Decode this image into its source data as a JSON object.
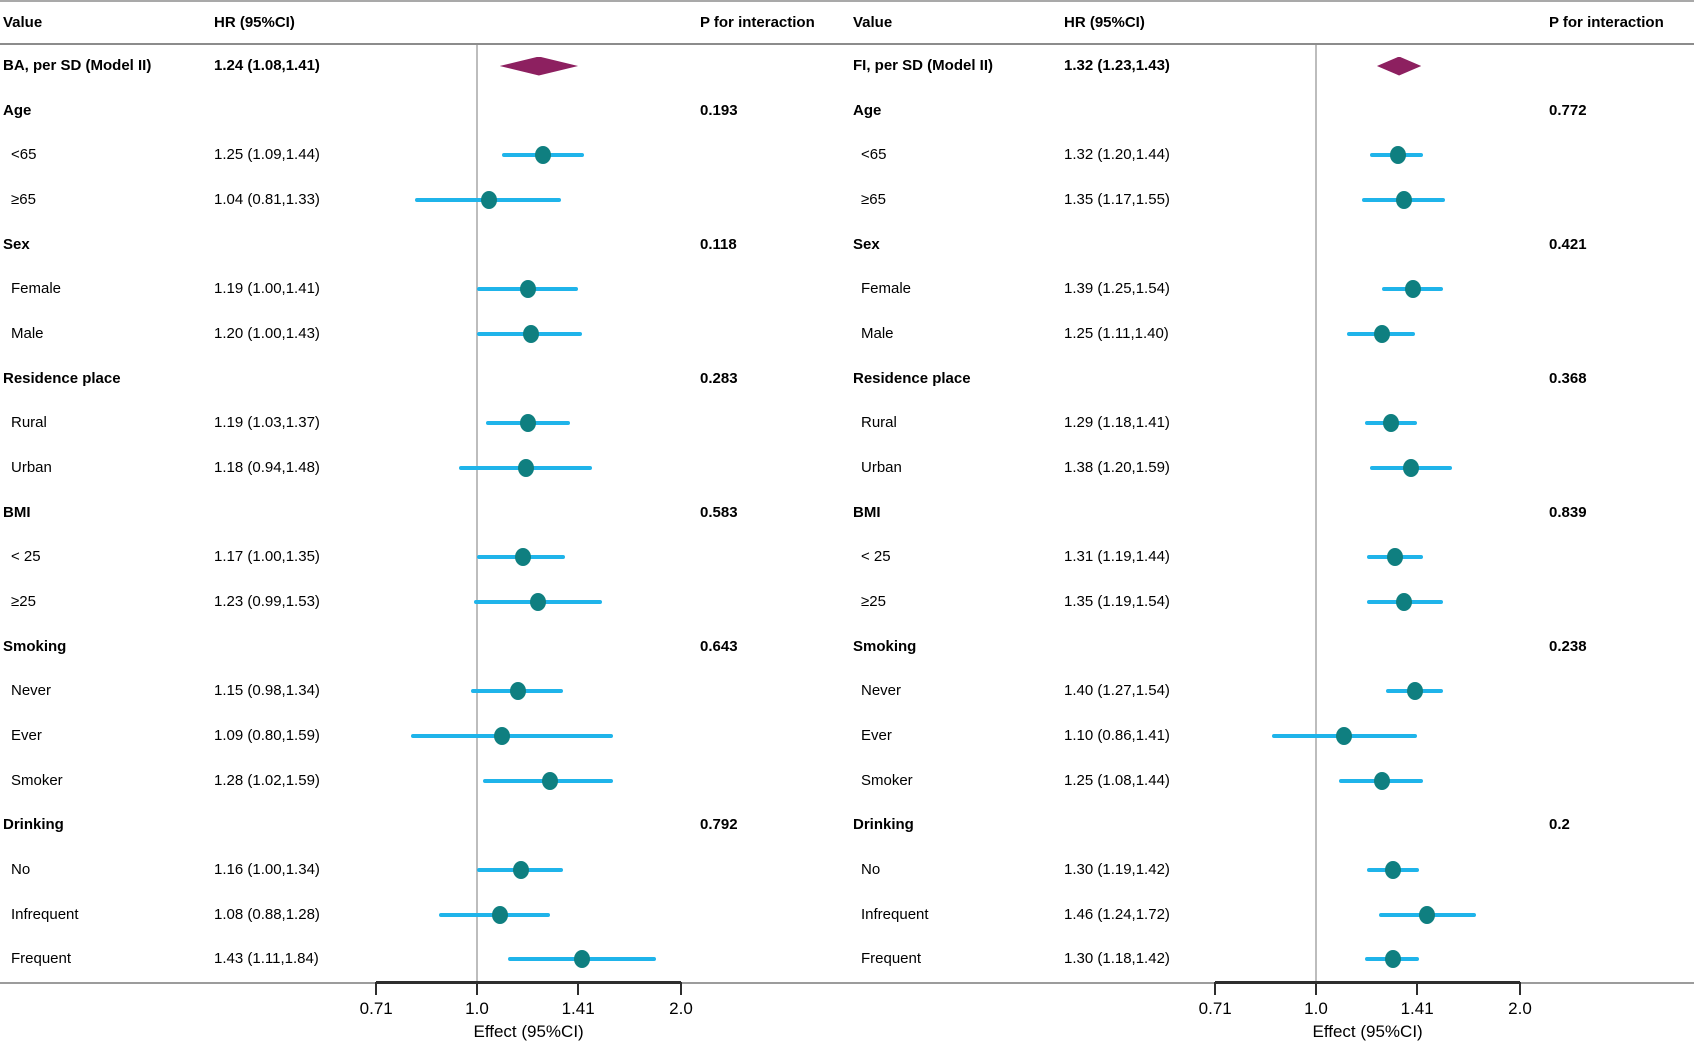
{
  "figure": {
    "axis_label": "Effect (95%CI)",
    "colors": {
      "ci_line": "#1fb4ea",
      "point": "#0f7f80",
      "diamond": "#8d2060",
      "ref_line": "#bdbdbd",
      "axis": "#2e2e2e"
    }
  },
  "chart_data": [
    {
      "type": "scatter",
      "subtype": "forest-plot",
      "xlabel": "Effect (95%CI)",
      "x_scale": "log2",
      "x_ticks": [
        0.71,
        1.0,
        1.41,
        2.0
      ],
      "x_tick_labels": [
        "0.71",
        "1.0",
        "1.41",
        "2.0"
      ],
      "ref_line": 1.0,
      "grid": false,
      "headers": {
        "value": "Value",
        "hr": "HR (95%CI)",
        "p": "P for interaction"
      },
      "summary": {
        "label": "BA, per SD (Model II)",
        "hr_text": "1.24 (1.08,1.41)",
        "hr": 1.24,
        "lo": 1.08,
        "hi": 1.41
      },
      "groups": [
        {
          "label": "Age",
          "p": "0.193",
          "items": [
            {
              "label": "<65",
              "hr_text": "1.25 (1.09,1.44)",
              "hr": 1.25,
              "lo": 1.09,
              "hi": 1.44
            },
            {
              "label": "≥65",
              "hr_text": "1.04 (0.81,1.33)",
              "hr": 1.04,
              "lo": 0.81,
              "hi": 1.33
            }
          ]
        },
        {
          "label": "Sex",
          "p": "0.118",
          "items": [
            {
              "label": "Female",
              "hr_text": "1.19 (1.00,1.41)",
              "hr": 1.19,
              "lo": 1.0,
              "hi": 1.41
            },
            {
              "label": "Male",
              "hr_text": "1.20 (1.00,1.43)",
              "hr": 1.2,
              "lo": 1.0,
              "hi": 1.43
            }
          ]
        },
        {
          "label": "Residence place",
          "p": "0.283",
          "items": [
            {
              "label": "Rural",
              "hr_text": "1.19 (1.03,1.37)",
              "hr": 1.19,
              "lo": 1.03,
              "hi": 1.37
            },
            {
              "label": "Urban",
              "hr_text": "1.18 (0.94,1.48)",
              "hr": 1.18,
              "lo": 0.94,
              "hi": 1.48
            }
          ]
        },
        {
          "label": "BMI",
          "p": "0.583",
          "items": [
            {
              "label": "< 25",
              "hr_text": "1.17 (1.00,1.35)",
              "hr": 1.17,
              "lo": 1.0,
              "hi": 1.35
            },
            {
              "label": "≥25",
              "hr_text": "1.23 (0.99,1.53)",
              "hr": 1.23,
              "lo": 0.99,
              "hi": 1.53
            }
          ]
        },
        {
          "label": "Smoking",
          "p": "0.643",
          "items": [
            {
              "label": "Never",
              "hr_text": "1.15 (0.98,1.34)",
              "hr": 1.15,
              "lo": 0.98,
              "hi": 1.34
            },
            {
              "label": "Ever",
              "hr_text": "1.09 (0.80,1.59)",
              "hr": 1.09,
              "lo": 0.8,
              "hi": 1.59
            },
            {
              "label": "Smoker",
              "hr_text": "1.28 (1.02,1.59)",
              "hr": 1.28,
              "lo": 1.02,
              "hi": 1.59
            }
          ]
        },
        {
          "label": "Drinking",
          "p": "0.792",
          "items": [
            {
              "label": "No",
              "hr_text": "1.16 (1.00,1.34)",
              "hr": 1.16,
              "lo": 1.0,
              "hi": 1.34
            },
            {
              "label": "Infrequent",
              "hr_text": "1.08 (0.88,1.28)",
              "hr": 1.08,
              "lo": 0.88,
              "hi": 1.28
            },
            {
              "label": "Frequent",
              "hr_text": "1.43 (1.11,1.84)",
              "hr": 1.43,
              "lo": 1.11,
              "hi": 1.84
            }
          ]
        }
      ]
    },
    {
      "type": "scatter",
      "subtype": "forest-plot",
      "xlabel": "Effect (95%CI)",
      "x_scale": "log2",
      "x_ticks": [
        0.71,
        1.0,
        1.41,
        2.0
      ],
      "x_tick_labels": [
        "0.71",
        "1.0",
        "1.41",
        "2.0"
      ],
      "ref_line": 1.0,
      "grid": false,
      "headers": {
        "value": "Value",
        "hr": "HR (95%CI)",
        "p": "P for interaction"
      },
      "summary": {
        "label": "FI, per SD (Model II)",
        "hr_text": "1.32 (1.23,1.43)",
        "hr": 1.32,
        "lo": 1.23,
        "hi": 1.43
      },
      "groups": [
        {
          "label": "Age",
          "p": "0.772",
          "items": [
            {
              "label": "<65",
              "hr_text": "1.32 (1.20,1.44)",
              "hr": 1.32,
              "lo": 1.2,
              "hi": 1.44
            },
            {
              "label": "≥65",
              "hr_text": "1.35 (1.17,1.55)",
              "hr": 1.35,
              "lo": 1.17,
              "hi": 1.55
            }
          ]
        },
        {
          "label": "Sex",
          "p": "0.421",
          "items": [
            {
              "label": "Female",
              "hr_text": "1.39 (1.25,1.54)",
              "hr": 1.39,
              "lo": 1.25,
              "hi": 1.54
            },
            {
              "label": "Male",
              "hr_text": "1.25 (1.11,1.40)",
              "hr": 1.25,
              "lo": 1.11,
              "hi": 1.4
            }
          ]
        },
        {
          "label": "Residence place",
          "p": "0.368",
          "items": [
            {
              "label": "Rural",
              "hr_text": "1.29 (1.18,1.41)",
              "hr": 1.29,
              "lo": 1.18,
              "hi": 1.41
            },
            {
              "label": "Urban",
              "hr_text": "1.38 (1.20,1.59)",
              "hr": 1.38,
              "lo": 1.2,
              "hi": 1.59
            }
          ]
        },
        {
          "label": "BMI",
          "p": "0.839",
          "items": [
            {
              "label": "< 25",
              "hr_text": "1.31 (1.19,1.44)",
              "hr": 1.31,
              "lo": 1.19,
              "hi": 1.44
            },
            {
              "label": "≥25",
              "hr_text": "1.35 (1.19,1.54)",
              "hr": 1.35,
              "lo": 1.19,
              "hi": 1.54
            }
          ]
        },
        {
          "label": "Smoking",
          "p": "0.238",
          "items": [
            {
              "label": "Never",
              "hr_text": "1.40 (1.27,1.54)",
              "hr": 1.4,
              "lo": 1.27,
              "hi": 1.54
            },
            {
              "label": "Ever",
              "hr_text": "1.10 (0.86,1.41)",
              "hr": 1.1,
              "lo": 0.86,
              "hi": 1.41
            },
            {
              "label": "Smoker",
              "hr_text": "1.25 (1.08,1.44)",
              "hr": 1.25,
              "lo": 1.08,
              "hi": 1.44
            }
          ]
        },
        {
          "label": "Drinking",
          "p": "0.2",
          "items": [
            {
              "label": "No",
              "hr_text": "1.30 (1.19,1.42)",
              "hr": 1.3,
              "lo": 1.19,
              "hi": 1.42
            },
            {
              "label": "Infrequent",
              "hr_text": "1.46 (1.24,1.72)",
              "hr": 1.46,
              "lo": 1.24,
              "hi": 1.72
            },
            {
              "label": "Frequent",
              "hr_text": "1.30 (1.18,1.42)",
              "hr": 1.3,
              "lo": 1.18,
              "hi": 1.42
            }
          ]
        }
      ]
    }
  ]
}
